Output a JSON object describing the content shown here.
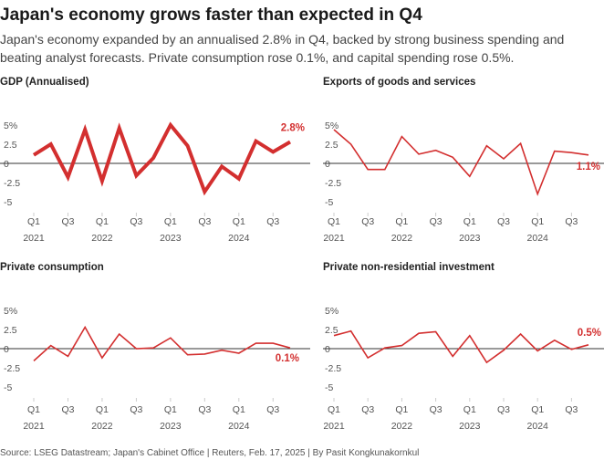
{
  "header": {
    "title": "Japan's economy grows faster than expected in Q4",
    "subtitle": "Japan's economy expanded by an annualised 2.8% in Q4, backed by strong business spending and beating analyst forecasts. Private consumption rose 0.1%, and capital spending rose 0.5%."
  },
  "source": "Source: LSEG Datastream; Japan's Cabinet Office | Reuters, Feb. 17, 2025 | By Pasit Kongkunakornkul",
  "colors": {
    "line": "#d32f2f",
    "zero": "#333333",
    "grid": "#cccccc"
  },
  "chart_data": [
    {
      "type": "line",
      "title": "GDP (Annualised)",
      "yticks": [
        "5%",
        "2.5",
        "0",
        "-2.5",
        "-5"
      ],
      "ylim": [
        -5,
        5
      ],
      "x": [
        "2021 Q1",
        "2021 Q2",
        "2021 Q3",
        "2021 Q4",
        "2022 Q1",
        "2022 Q2",
        "2022 Q3",
        "2022 Q4",
        "2023 Q1",
        "2023 Q2",
        "2023 Q3",
        "2023 Q4",
        "2024 Q1",
        "2024 Q2",
        "2024 Q3",
        "2024 Q4"
      ],
      "xticks": [
        {
          "q": "Q1",
          "year": "2021"
        },
        {
          "q": "Q3",
          "year": ""
        },
        {
          "q": "Q1",
          "year": "2022"
        },
        {
          "q": "Q3",
          "year": ""
        },
        {
          "q": "Q1",
          "year": "2023"
        },
        {
          "q": "Q3",
          "year": ""
        },
        {
          "q": "Q1",
          "year": "2024"
        },
        {
          "q": "Q3",
          "year": ""
        }
      ],
      "series": [
        {
          "values": [
            1.1,
            2.5,
            -1.8,
            4.4,
            -2.3,
            4.6,
            -1.6,
            0.7,
            5.0,
            2.3,
            -3.7,
            -0.4,
            -2.0,
            2.9,
            1.5,
            2.8
          ]
        }
      ],
      "end_label": "2.8%",
      "emphasis": true
    },
    {
      "type": "line",
      "title": "Exports of goods and services",
      "yticks": [
        "5%",
        "2.5",
        "0",
        "-2.5",
        "-5"
      ],
      "ylim": [
        -5,
        5
      ],
      "x": [
        "2021 Q1",
        "2021 Q2",
        "2021 Q3",
        "2021 Q4",
        "2022 Q1",
        "2022 Q2",
        "2022 Q3",
        "2022 Q4",
        "2023 Q1",
        "2023 Q2",
        "2023 Q3",
        "2023 Q4",
        "2024 Q1",
        "2024 Q2",
        "2024 Q3",
        "2024 Q4"
      ],
      "xticks": [
        {
          "q": "Q1",
          "year": "2021"
        },
        {
          "q": "Q3",
          "year": ""
        },
        {
          "q": "Q1",
          "year": "2022"
        },
        {
          "q": "Q3",
          "year": ""
        },
        {
          "q": "Q1",
          "year": "2023"
        },
        {
          "q": "Q3",
          "year": ""
        },
        {
          "q": "Q1",
          "year": "2024"
        },
        {
          "q": "Q3",
          "year": ""
        }
      ],
      "series": [
        {
          "values": [
            4.4,
            2.5,
            -0.8,
            -0.8,
            3.5,
            1.2,
            1.7,
            0.8,
            -1.7,
            2.3,
            0.6,
            2.6,
            -4.0,
            1.6,
            1.4,
            1.1
          ]
        }
      ],
      "end_label": "1.1%",
      "emphasis": false
    },
    {
      "type": "line",
      "title": "Private consumption",
      "yticks": [
        "5%",
        "2.5",
        "0",
        "-2.5",
        "-5"
      ],
      "ylim": [
        -5,
        5
      ],
      "x": [
        "2021 Q1",
        "2021 Q2",
        "2021 Q3",
        "2021 Q4",
        "2022 Q1",
        "2022 Q2",
        "2022 Q3",
        "2022 Q4",
        "2023 Q1",
        "2023 Q2",
        "2023 Q3",
        "2023 Q4",
        "2024 Q1",
        "2024 Q2",
        "2024 Q3",
        "2024 Q4"
      ],
      "xticks": [
        {
          "q": "Q1",
          "year": "2021"
        },
        {
          "q": "Q3",
          "year": ""
        },
        {
          "q": "Q1",
          "year": "2022"
        },
        {
          "q": "Q3",
          "year": ""
        },
        {
          "q": "Q1",
          "year": "2023"
        },
        {
          "q": "Q3",
          "year": ""
        },
        {
          "q": "Q1",
          "year": "2024"
        },
        {
          "q": "Q3",
          "year": ""
        }
      ],
      "series": [
        {
          "values": [
            -1.6,
            0.4,
            -1.0,
            2.8,
            -1.2,
            1.9,
            0.0,
            0.1,
            1.4,
            -0.8,
            -0.7,
            -0.2,
            -0.6,
            0.7,
            0.7,
            0.1
          ]
        }
      ],
      "end_label": "0.1%",
      "emphasis": false
    },
    {
      "type": "line",
      "title": "Private non-residential investment",
      "yticks": [
        "5%",
        "2.5",
        "0",
        "-2.5",
        "-5"
      ],
      "ylim": [
        -5,
        5
      ],
      "x": [
        "2021 Q1",
        "2021 Q2",
        "2021 Q3",
        "2021 Q4",
        "2022 Q1",
        "2022 Q2",
        "2022 Q3",
        "2022 Q4",
        "2023 Q1",
        "2023 Q2",
        "2023 Q3",
        "2023 Q4",
        "2024 Q1",
        "2024 Q2",
        "2024 Q3",
        "2024 Q4"
      ],
      "xticks": [
        {
          "q": "Q1",
          "year": "2021"
        },
        {
          "q": "Q3",
          "year": ""
        },
        {
          "q": "Q1",
          "year": "2022"
        },
        {
          "q": "Q3",
          "year": ""
        },
        {
          "q": "Q1",
          "year": "2023"
        },
        {
          "q": "Q3",
          "year": ""
        },
        {
          "q": "Q1",
          "year": "2024"
        },
        {
          "q": "Q3",
          "year": ""
        }
      ],
      "series": [
        {
          "values": [
            1.7,
            2.3,
            -1.2,
            0.1,
            0.4,
            2.0,
            2.2,
            -1.0,
            1.7,
            -1.8,
            -0.2,
            1.9,
            -0.3,
            1.1,
            -0.1,
            0.5
          ]
        }
      ],
      "end_label": "0.5%",
      "emphasis": false
    }
  ]
}
